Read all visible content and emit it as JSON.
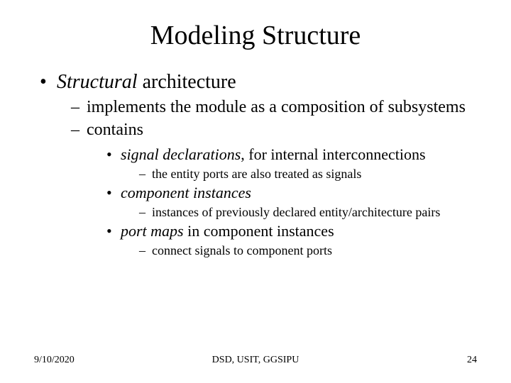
{
  "title": "Modeling Structure",
  "bullet1": {
    "italic": "Structural",
    "rest": " architecture"
  },
  "sub1a": "implements the module as a composition of subsystems",
  "sub1b": "contains",
  "sig": {
    "italic": "signal declarations",
    "rest": ", for internal interconnections"
  },
  "sig_sub": "the entity ports are also treated as signals",
  "comp": {
    "italic": "component instances"
  },
  "comp_sub": "instances of previously declared entity/architecture pairs",
  "port": {
    "italic": "port maps",
    "rest": " in component instances"
  },
  "port_sub": "connect signals to component ports",
  "footer": {
    "date": "9/10/2020",
    "center": "DSD, USIT, GGSIPU",
    "page": "24"
  }
}
